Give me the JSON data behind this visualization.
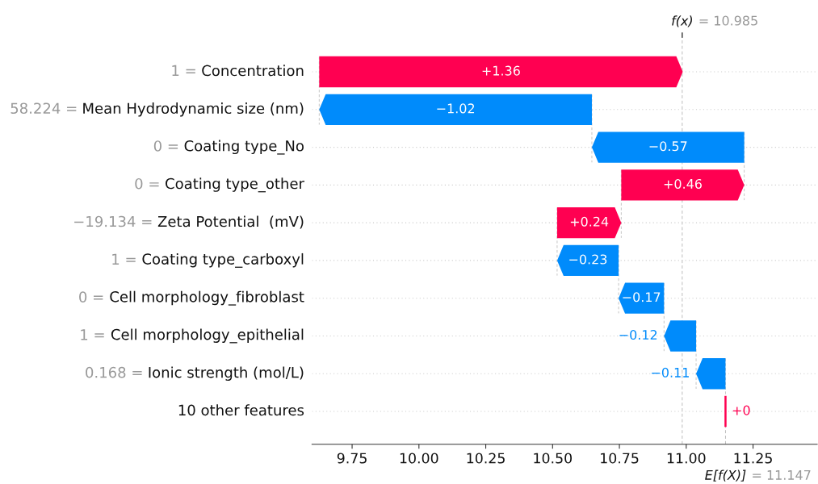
{
  "chart_data": {
    "type": "bar",
    "orientation": "horizontal",
    "categories": [
      "1 = Concentration",
      "58.224 = Mean Hydrodynamic size (nm)",
      "0 = Coating type_No",
      "0 = Coating type_other",
      "−19.134 = Zeta Potential  (mV)",
      "1 = Coating type_carboxyl",
      "0 = Cell morphology_fibroblast",
      "1 = Cell morphology_epithelial",
      "0.168 = Ionic strength (mol/L)",
      "10 other features"
    ],
    "values": [
      1.36,
      -1.02,
      -0.57,
      0.46,
      0.24,
      -0.23,
      -0.17,
      -0.12,
      -0.11,
      0
    ],
    "base": [
      9.627,
      10.647,
      11.217,
      10.757,
      10.517,
      10.747,
      10.917,
      11.037,
      11.147,
      11.147
    ],
    "colors": [
      "#ff0051",
      "#008bfb",
      "#008bfb",
      "#ff0051",
      "#ff0051",
      "#008bfb",
      "#008bfb",
      "#008bfb",
      "#008bfb",
      "#ff0051"
    ],
    "value_labels": [
      "+1.36",
      "−1.02",
      "−0.57",
      "+0.46",
      "+0.24",
      "−0.23",
      "−0.17",
      "−0.12",
      "−0.11",
      "+0"
    ],
    "xlim": [
      9.6,
      11.49
    ],
    "xticks": [
      9.75,
      {
        "value": 10,
        "label": "10.00"
      },
      10.25,
      {
        "value": 10.5,
        "label": "10.50"
      },
      10.75,
      {
        "value": 11,
        "label": "11.00"
      },
      11.25
    ],
    "ref_lines": [
      {
        "axis": "x",
        "value": 10.985,
        "label": "f(x) = 10.985",
        "color": "#bbbbbb",
        "line_style": "dashed"
      },
      {
        "axis": "x",
        "value": 11.147,
        "label": "E[f(X)] = 11.147",
        "color": "#bbbbbb",
        "line_style": "dashed"
      }
    ],
    "grid": "y"
  }
}
